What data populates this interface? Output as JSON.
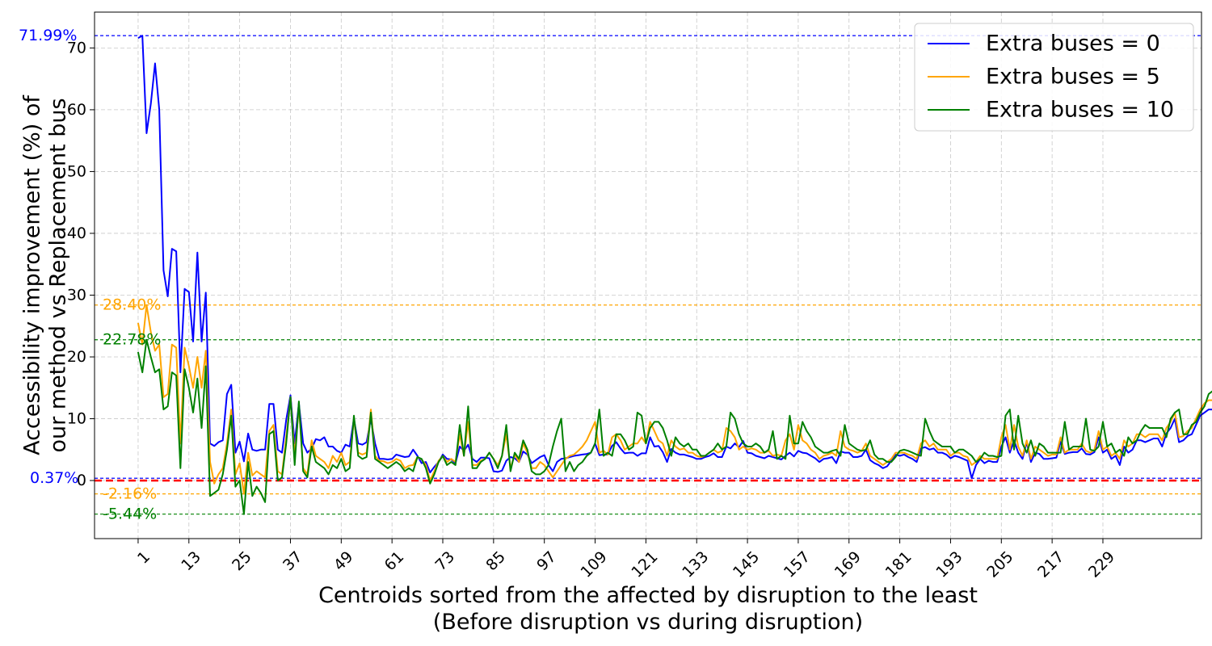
{
  "chart_data": {
    "type": "line",
    "title": "",
    "xlabel_line1": "Centroids sorted from the affected by disruption to the least",
    "xlabel_line2": "(Before disruption vs during disruption)",
    "ylabel_line1": "Accessibility improvement (%) of",
    "ylabel_line2": "our method vs Replacement bus",
    "xlim": [
      -9.3,
      252.3
    ],
    "ylim": [
      -9.4,
      75.8
    ],
    "xticks": [
      1,
      13,
      25,
      37,
      49,
      61,
      73,
      85,
      97,
      109,
      121,
      133,
      145,
      157,
      169,
      181,
      193,
      205,
      217,
      229
    ],
    "yticks": [
      0,
      10,
      20,
      30,
      40,
      50,
      60,
      70
    ],
    "grid": true,
    "legend_position": "top-right",
    "zero_line_color": "#ff0000",
    "series": [
      {
        "name": "Extra buses = 0",
        "color": "#0000ff",
        "values": [
          71.6,
          71.99,
          56.2,
          61.0,
          67.5,
          60.0,
          34.0,
          29.8,
          37.5,
          37.1,
          17.5,
          31.0,
          30.5,
          22.5,
          36.9,
          22.5,
          30.4,
          6.0,
          5.6,
          6.2,
          6.5,
          14.0,
          15.5,
          4.5,
          6.3,
          3.1,
          7.6,
          5.0,
          4.8,
          5.0,
          5.0,
          12.4,
          12.4,
          5.0,
          4.5,
          9.8,
          13.8,
          6.0,
          12.5,
          6.0,
          4.5,
          5.2,
          6.7,
          6.5,
          7.0,
          5.5,
          5.5,
          4.8,
          4.5,
          5.8,
          5.5,
          10.0,
          6.0,
          5.8,
          6.2,
          10.0,
          6.0,
          3.5,
          3.5,
          3.4,
          3.5,
          4.2,
          4.0,
          3.8,
          3.9,
          5.0,
          4.0,
          2.8,
          3.0,
          1.3,
          2.2,
          3.0,
          4.2,
          3.5,
          3.4,
          2.8,
          5.5,
          4.8,
          5.8,
          3.5,
          3.0,
          3.7,
          3.7,
          3.6,
          1.5,
          1.4,
          1.6,
          3.2,
          3.8,
          3.6,
          3.0,
          4.7,
          4.2,
          2.8,
          3.3,
          3.8,
          4.1,
          2.5,
          1.5,
          3.0,
          3.5,
          3.6,
          3.8,
          4.0,
          4.1,
          4.2,
          4.3,
          4.5,
          6.0,
          4.1,
          4.2,
          4.2,
          5.6,
          6.2,
          5.2,
          4.4,
          4.5,
          4.5,
          4.0,
          4.4,
          4.4,
          7.0,
          5.5,
          5.6,
          4.6,
          3.0,
          5.1,
          4.5,
          4.2,
          4.2,
          4.0,
          3.8,
          3.5,
          3.5,
          3.8,
          4.0,
          4.4,
          3.8,
          3.8,
          5.5,
          5.2,
          6.0,
          5.4,
          6.4,
          4.5,
          4.4,
          4.0,
          3.8,
          3.6,
          4.0,
          3.8,
          3.6,
          3.4,
          4.0,
          4.5,
          3.9,
          4.8,
          4.5,
          4.4,
          4.0,
          3.6,
          3.0,
          3.5,
          3.6,
          3.8,
          2.8,
          4.7,
          4.5,
          4.5,
          3.8,
          3.8,
          4.0,
          5.0,
          3.3,
          2.8,
          2.5,
          2.0,
          2.3,
          3.2,
          4.2,
          4.0,
          4.2,
          3.8,
          3.5,
          3.0,
          5.2,
          5.4,
          5.0,
          5.2,
          4.5,
          4.5,
          4.2,
          3.6,
          4.0,
          3.8,
          3.5,
          3.2,
          0.37,
          2.5,
          3.5,
          2.8,
          3.2,
          3.0,
          3.0,
          5.5,
          7.0,
          4.5,
          6.5,
          4.5,
          3.5,
          6.2,
          3.0,
          4.5,
          4.3,
          3.5,
          3.5,
          3.6,
          3.7,
          6.3,
          4.3,
          4.5,
          4.6,
          4.6,
          5.2,
          4.3,
          4.2,
          4.6,
          7.0,
          4.5,
          5.0,
          3.5,
          4.0,
          2.5,
          5.5,
          4.5,
          5.0,
          6.5,
          6.5,
          6.2,
          6.5,
          6.8,
          6.8,
          5.5,
          7.6,
          8.5,
          10.0,
          6.2,
          6.5,
          7.2,
          7.5,
          9.0,
          10.5,
          11.0,
          11.5,
          11.5,
          11.5,
          11.0,
          10.5,
          10.0,
          11.0
        ]
      },
      {
        "name": "Extra buses = 5",
        "color": "#ffa500",
        "values": [
          25.5,
          22.0,
          28.4,
          24.0,
          21.0,
          22.0,
          13.5,
          14.0,
          22.0,
          21.5,
          6.0,
          21.5,
          18.5,
          15.0,
          20.0,
          15.0,
          21.0,
          3.0,
          -0.5,
          1.0,
          2.0,
          6.0,
          11.5,
          1.0,
          2.8,
          -2.16,
          4.5,
          0.8,
          1.5,
          1.0,
          0.5,
          8.0,
          9.0,
          1.5,
          1.0,
          7.0,
          13.5,
          4.0,
          12.0,
          2.0,
          1.0,
          6.5,
          4.0,
          3.5,
          3.0,
          2.0,
          4.0,
          3.0,
          4.5,
          2.5,
          3.0,
          10.0,
          4.5,
          4.2,
          4.5,
          11.5,
          4.0,
          3.2,
          3.1,
          2.8,
          3.0,
          3.5,
          3.2,
          2.0,
          2.4,
          2.5,
          3.8,
          3.4,
          2.5,
          0.0,
          1.5,
          3.2,
          4.0,
          3.0,
          3.5,
          3.0,
          7.5,
          4.0,
          9.5,
          2.5,
          2.5,
          3.2,
          3.5,
          4.5,
          3.5,
          2.5,
          4.0,
          7.5,
          2.0,
          4.2,
          3.0,
          6.0,
          4.5,
          2.0,
          2.0,
          3.0,
          2.5,
          1.5,
          0.5,
          1.5,
          2.5,
          3.5,
          4.0,
          4.2,
          4.8,
          5.5,
          6.5,
          8.0,
          9.5,
          4.5,
          4.8,
          4.2,
          7.0,
          7.5,
          6.5,
          5.0,
          5.5,
          6.0,
          6.0,
          7.0,
          6.0,
          9.5,
          8.0,
          6.5,
          6.0,
          4.0,
          6.5,
          5.5,
          5.0,
          5.2,
          4.5,
          4.5,
          4.0,
          3.8,
          4.0,
          4.5,
          5.0,
          4.5,
          4.8,
          8.5,
          8.0,
          7.0,
          5.0,
          5.5,
          5.0,
          5.2,
          5.0,
          4.5,
          4.5,
          4.8,
          4.0,
          4.2,
          4.0,
          6.5,
          7.5,
          5.0,
          9.0,
          6.5,
          6.0,
          5.0,
          4.5,
          3.5,
          4.0,
          4.2,
          4.5,
          4.0,
          8.0,
          5.5,
          5.0,
          4.8,
          4.5,
          4.8,
          6.0,
          4.0,
          3.5,
          3.0,
          2.5,
          3.0,
          3.5,
          4.5,
          4.5,
          4.5,
          4.2,
          4.0,
          3.5,
          6.0,
          6.5,
          5.5,
          6.0,
          5.0,
          5.0,
          5.0,
          4.0,
          4.5,
          4.5,
          4.0,
          3.8,
          2.5,
          3.0,
          4.0,
          3.5,
          3.5,
          3.5,
          3.5,
          7.0,
          9.0,
          5.0,
          9.0,
          5.5,
          4.0,
          6.5,
          3.5,
          5.5,
          5.0,
          4.5,
          4.0,
          4.2,
          4.2,
          7.0,
          4.5,
          5.0,
          5.0,
          5.0,
          6.0,
          4.8,
          4.5,
          5.0,
          8.0,
          5.0,
          5.5,
          4.0,
          4.5,
          3.5,
          6.5,
          5.5,
          6.0,
          7.5,
          7.5,
          7.0,
          7.5,
          7.5,
          7.5,
          6.5,
          8.5,
          9.5,
          11.0,
          7.0,
          7.2,
          8.0,
          8.5,
          10.0,
          11.5,
          12.5,
          13.0,
          13.0,
          12.8,
          12.5,
          12.3,
          12.2,
          12.5
        ]
      },
      {
        "name": "Extra buses = 10",
        "color": "#008000",
        "values": [
          20.8,
          17.5,
          22.78,
          20.0,
          17.5,
          18.0,
          11.5,
          12.0,
          17.5,
          17.0,
          2.0,
          18.0,
          15.0,
          11.0,
          16.5,
          8.5,
          18.5,
          -2.5,
          -2.0,
          -1.5,
          1.0,
          5.0,
          10.5,
          -1.0,
          0.0,
          -5.44,
          3.0,
          -2.5,
          -1.0,
          -2.0,
          -3.5,
          7.5,
          8.0,
          0.0,
          0.5,
          6.0,
          13.5,
          2.5,
          12.8,
          1.5,
          0.5,
          5.5,
          3.0,
          2.5,
          2.0,
          1.0,
          2.5,
          2.0,
          3.5,
          1.5,
          2.0,
          10.5,
          4.0,
          3.5,
          3.8,
          11.0,
          3.5,
          3.0,
          2.5,
          2.0,
          2.5,
          3.0,
          2.5,
          1.5,
          2.0,
          1.5,
          3.8,
          3.5,
          2.0,
          -0.5,
          1.0,
          3.0,
          4.0,
          2.5,
          3.0,
          2.5,
          9.0,
          4.0,
          12.0,
          2.0,
          2.0,
          3.0,
          3.5,
          4.5,
          3.5,
          2.0,
          4.0,
          9.0,
          1.5,
          4.5,
          3.5,
          6.5,
          5.0,
          1.5,
          1.0,
          1.0,
          1.5,
          2.5,
          5.5,
          8.0,
          10.0,
          1.5,
          3.0,
          1.5,
          2.5,
          3.0,
          4.0,
          4.5,
          6.0,
          11.5,
          4.0,
          4.5,
          4.0,
          7.5,
          7.5,
          6.5,
          5.0,
          5.5,
          11.0,
          10.5,
          6.0,
          8.5,
          9.5,
          9.5,
          8.5,
          6.5,
          4.0,
          7.0,
          6.0,
          5.5,
          6.0,
          5.0,
          5.0,
          4.0,
          4.0,
          4.5,
          5.0,
          6.0,
          5.0,
          5.5,
          11.0,
          10.0,
          7.5,
          6.0,
          5.5,
          5.5,
          6.0,
          5.5,
          4.5,
          5.0,
          8.0,
          3.5,
          4.0,
          3.5,
          10.5,
          6.0,
          6.0,
          9.5,
          8.0,
          7.0,
          5.5,
          5.0,
          4.5,
          4.5,
          4.8,
          5.0,
          4.0,
          9.0,
          6.0,
          5.5,
          5.0,
          4.8,
          5.0,
          6.5,
          4.2,
          3.5,
          3.5,
          3.0,
          3.0,
          3.8,
          4.8,
          5.0,
          4.8,
          4.5,
          4.2,
          4.0,
          10.0,
          8.0,
          6.5,
          6.0,
          5.5,
          5.5,
          5.5,
          4.5,
          5.0,
          5.0,
          4.5,
          4.0,
          3.0,
          3.5,
          4.5,
          4.0,
          4.0,
          3.8,
          4.0,
          10.5,
          11.5,
          5.0,
          10.5,
          6.0,
          4.5,
          6.5,
          4.0,
          6.0,
          5.5,
          4.5,
          4.5,
          4.5,
          4.5,
          9.5,
          5.0,
          5.5,
          5.5,
          5.5,
          10.0,
          5.0,
          4.8,
          5.5,
          9.5,
          5.5,
          6.0,
          4.5,
          5.0,
          4.0,
          7.0,
          6.0,
          6.5,
          8.0,
          9.0,
          8.5,
          8.5,
          8.5,
          8.5,
          7.0,
          10.0,
          11.0,
          11.5,
          7.5,
          7.5,
          9.0,
          9.5,
          11.0,
          12.0,
          14.0,
          14.5,
          14.5,
          14.2,
          14.0,
          14.0,
          14.2,
          13.8
        ]
      }
    ],
    "max_lines": [
      {
        "value": 71.99,
        "label": "71.99%",
        "color": "#0000ff"
      },
      {
        "value": 28.4,
        "label": "28.40%",
        "color": "#ffa500"
      },
      {
        "value": 22.78,
        "label": "22.78%",
        "color": "#008000"
      }
    ],
    "min_lines": [
      {
        "value": 0.37,
        "label": "0.37%",
        "color": "#0000ff"
      },
      {
        "value": -2.16,
        "label": "-2.16%",
        "color": "#ffa500"
      },
      {
        "value": -5.44,
        "label": "-5.44%",
        "color": "#008000"
      }
    ]
  }
}
